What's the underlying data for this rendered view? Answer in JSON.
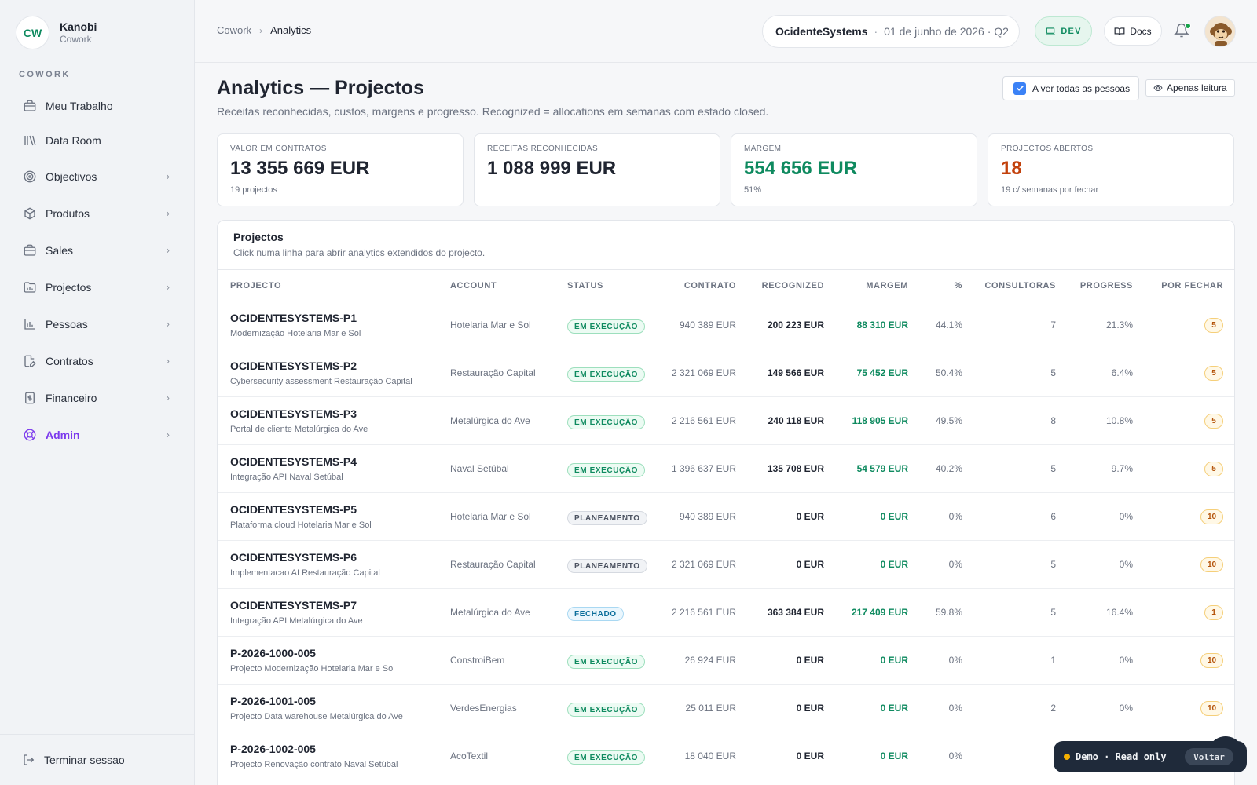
{
  "brand": {
    "logo": "CW",
    "name": "Kanobi",
    "sub": "Cowork"
  },
  "sidebar": {
    "section": "COWORK",
    "items": [
      {
        "label": "Meu Trabalho",
        "icon": "briefcase-icon"
      },
      {
        "label": "Data Room",
        "icon": "library-icon"
      },
      {
        "label": "Objectivos",
        "icon": "target-icon"
      },
      {
        "label": "Produtos",
        "icon": "box-icon"
      },
      {
        "label": "Sales",
        "icon": "briefcase-icon"
      },
      {
        "label": "Projectos",
        "icon": "folder-chart-icon"
      },
      {
        "label": "Pessoas",
        "icon": "bar-chart-icon"
      },
      {
        "label": "Contratos",
        "icon": "file-edit-icon"
      },
      {
        "label": "Financeiro",
        "icon": "receipt-icon"
      },
      {
        "label": "Admin",
        "icon": "lifebuoy-icon"
      }
    ],
    "logout": "Terminar sessao"
  },
  "topbar": {
    "crumbs": [
      "Cowork",
      "Analytics"
    ],
    "org": "OcidenteSystems",
    "date": "01 de junho de 2026 · Q2",
    "env": "DEV",
    "docs": "Docs"
  },
  "page": {
    "title": "Analytics — Projectos",
    "subtitle": "Receitas reconhecidas, custos, margens e progresso. Recognized = allocations em semanas com estado closed.",
    "toggle": "A ver todas as pessoas",
    "readonly": "Apenas leitura"
  },
  "kpis": [
    {
      "label": "VALOR EM CONTRATOS",
      "value": "13 355 669 EUR",
      "foot": "19 projectos"
    },
    {
      "label": "RECEITAS RECONHECIDAS",
      "value": "1 088 999 EUR",
      "foot": ""
    },
    {
      "label": "MARGEM",
      "value": "554 656 EUR",
      "foot": "51%"
    },
    {
      "label": "PROJECTOS ABERTOS",
      "value": "18",
      "foot": "19 c/ semanas por fechar"
    }
  ],
  "table": {
    "title": "Projectos",
    "subtitle": "Click numa linha para abrir analytics extendidos do projecto.",
    "headers": [
      "PROJECTO",
      "ACCOUNT",
      "STATUS",
      "CONTRATO",
      "RECOGNIZED",
      "MARGEM",
      "%",
      "CONSULTORAS",
      "PROGRESS",
      "POR FECHAR"
    ],
    "rows": [
      {
        "code": "OCIDENTESYSTEMS-P1",
        "name": "Modernização Hotelaria Mar e Sol",
        "account": "Hotelaria Mar e Sol",
        "status": "EM EXECUÇÃO",
        "contract": "940 389 EUR",
        "recognized": "200 223 EUR",
        "margin": "88 310 EUR",
        "pct": "44.1%",
        "consultants": "7",
        "progress": "21.3%",
        "por_fechar": "5"
      },
      {
        "code": "OCIDENTESYSTEMS-P2",
        "name": "Cybersecurity assessment Restauração Capital",
        "account": "Restauração Capital",
        "status": "EM EXECUÇÃO",
        "contract": "2 321 069 EUR",
        "recognized": "149 566 EUR",
        "margin": "75 452 EUR",
        "pct": "50.4%",
        "consultants": "5",
        "progress": "6.4%",
        "por_fechar": "5"
      },
      {
        "code": "OCIDENTESYSTEMS-P3",
        "name": "Portal de cliente Metalúrgica do Ave",
        "account": "Metalúrgica do Ave",
        "status": "EM EXECUÇÃO",
        "contract": "2 216 561 EUR",
        "recognized": "240 118 EUR",
        "margin": "118 905 EUR",
        "pct": "49.5%",
        "consultants": "8",
        "progress": "10.8%",
        "por_fechar": "5"
      },
      {
        "code": "OCIDENTESYSTEMS-P4",
        "name": "Integração API Naval Setúbal",
        "account": "Naval Setúbal",
        "status": "EM EXECUÇÃO",
        "contract": "1 396 637 EUR",
        "recognized": "135 708 EUR",
        "margin": "54 579 EUR",
        "pct": "40.2%",
        "consultants": "5",
        "progress": "9.7%",
        "por_fechar": "5"
      },
      {
        "code": "OCIDENTESYSTEMS-P5",
        "name": "Plataforma cloud Hotelaria Mar e Sol",
        "account": "Hotelaria Mar e Sol",
        "status": "PLANEAMENTO",
        "contract": "940 389 EUR",
        "recognized": "0 EUR",
        "margin": "0 EUR",
        "pct": "0%",
        "consultants": "6",
        "progress": "0%",
        "por_fechar": "10"
      },
      {
        "code": "OCIDENTESYSTEMS-P6",
        "name": "Implementacao AI Restauração Capital",
        "account": "Restauração Capital",
        "status": "PLANEAMENTO",
        "contract": "2 321 069 EUR",
        "recognized": "0 EUR",
        "margin": "0 EUR",
        "pct": "0%",
        "consultants": "5",
        "progress": "0%",
        "por_fechar": "10"
      },
      {
        "code": "OCIDENTESYSTEMS-P7",
        "name": "Integração API Metalúrgica do Ave",
        "account": "Metalúrgica do Ave",
        "status": "FECHADO",
        "contract": "2 216 561 EUR",
        "recognized": "363 384 EUR",
        "margin": "217 409 EUR",
        "pct": "59.8%",
        "consultants": "5",
        "progress": "16.4%",
        "por_fechar": "1"
      },
      {
        "code": "P-2026-1000-005",
        "name": "Projecto Modernização Hotelaria Mar e Sol",
        "account": "ConstroiBem",
        "status": "EM EXECUÇÃO",
        "contract": "26 924 EUR",
        "recognized": "0 EUR",
        "margin": "0 EUR",
        "pct": "0%",
        "consultants": "1",
        "progress": "0%",
        "por_fechar": "10"
      },
      {
        "code": "P-2026-1001-005",
        "name": "Projecto Data warehouse Metalúrgica do Ave",
        "account": "VerdesEnergias",
        "status": "EM EXECUÇÃO",
        "contract": "25 011 EUR",
        "recognized": "0 EUR",
        "margin": "0 EUR",
        "pct": "0%",
        "consultants": "2",
        "progress": "0%",
        "por_fechar": "10"
      },
      {
        "code": "P-2026-1002-005",
        "name": "Projecto Renovação contrato Naval Setúbal",
        "account": "AcoTextil",
        "status": "EM EXECUÇÃO",
        "contract": "18 040 EUR",
        "recognized": "0 EUR",
        "margin": "0 EUR",
        "pct": "0%",
        "consultants": "",
        "progress": "",
        "por_fechar": ""
      }
    ]
  },
  "demo": {
    "label": "Demo · Read only",
    "button": "Voltar"
  },
  "colors": {
    "accent": "#0e8a5f",
    "admin": "#7c3aed",
    "warning": "#c2410c"
  }
}
